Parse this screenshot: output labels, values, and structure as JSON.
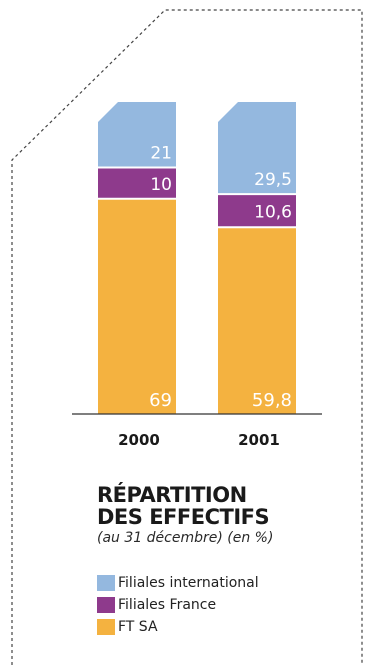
{
  "chart_data": {
    "type": "bar",
    "stacked": true,
    "categories": [
      "2000",
      "2001"
    ],
    "series": [
      {
        "name": "FT SA",
        "values": [
          69,
          59.8
        ],
        "labels": [
          "69",
          "59,8"
        ],
        "color": "#f4b240"
      },
      {
        "name": "Filiales France",
        "values": [
          10,
          10.6
        ],
        "labels": [
          "10",
          "10,6"
        ],
        "color": "#8e3a8c"
      },
      {
        "name": "Filiales international",
        "values": [
          21,
          29.5
        ],
        "labels": [
          "21",
          "29,5"
        ],
        "color": "#94b8df"
      }
    ],
    "title": "RÉPARTITION\nDES EFFECTIFS",
    "subtitle": "(au 31 décembre) (en %)",
    "unit": "%",
    "legend_position": "bottom-left"
  }
}
